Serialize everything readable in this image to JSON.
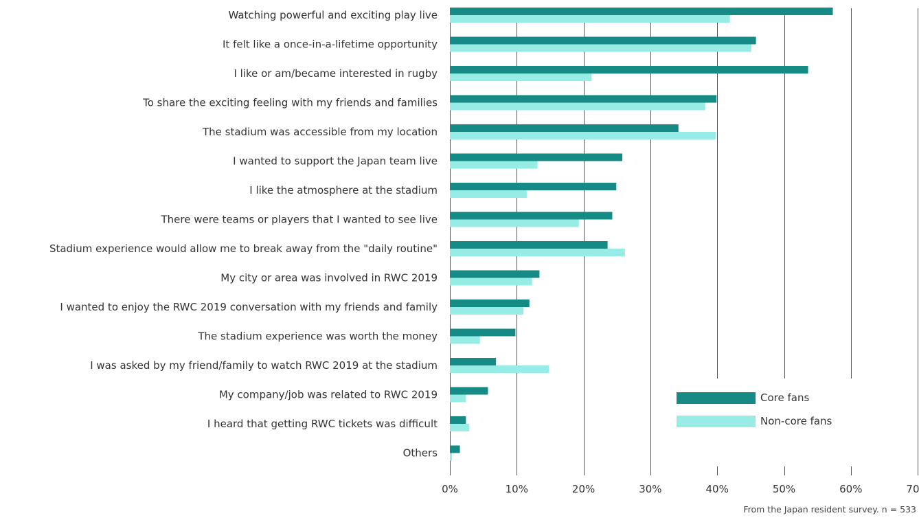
{
  "chart_data": {
    "type": "bar",
    "orientation": "horizontal",
    "title": "",
    "xlabel": "",
    "ylabel": "",
    "categories": [
      "Watching powerful and exciting play live",
      "It felt like a once-in-a-lifetime opportunity",
      "I like or am/became interested in rugby",
      "To share the exciting feeling with my friends and families",
      "The stadium was accessible from my location",
      "I wanted to support the Japan team live",
      "I like the atmosphere at the stadium",
      "There were teams or players that I wanted to see live",
      "Stadium experience would allow me to break away from the \"daily routine\"",
      "My city or area was involved in RWC 2019",
      "I wanted to enjoy the RWC 2019 conversation with my friends and family",
      "The stadium experience was worth the money",
      "I was asked by my friend/family to watch RWC 2019 at the stadium",
      "My company/job was related to RWC 2019",
      "I heard that getting RWC tickets was difficult",
      "Others"
    ],
    "series": [
      {
        "name": "Core fans",
        "color": "#168b86",
        "values": [
          57.3,
          45.8,
          53.6,
          39.9,
          34.2,
          25.8,
          24.9,
          24.3,
          23.6,
          13.4,
          11.9,
          9.8,
          6.9,
          5.7,
          2.4,
          1.5
        ]
      },
      {
        "name": "Non-core fans",
        "color": "#97ece6",
        "values": [
          41.9,
          45.1,
          21.2,
          38.2,
          39.8,
          13.1,
          11.5,
          19.3,
          26.2,
          12.3,
          11.0,
          4.5,
          14.8,
          2.4,
          2.9,
          0.3
        ]
      }
    ],
    "xlim": [
      0,
      70
    ],
    "xticks": [
      0,
      10,
      20,
      30,
      40,
      50,
      60,
      70
    ],
    "tick_labels": [
      "0%",
      "10%",
      "20%",
      "30%",
      "40%",
      "50%",
      "60%",
      "70%"
    ],
    "grid": true,
    "legend_position": "bottom-right inside plot",
    "note": "From the Japan resident survey. n = 533"
  }
}
